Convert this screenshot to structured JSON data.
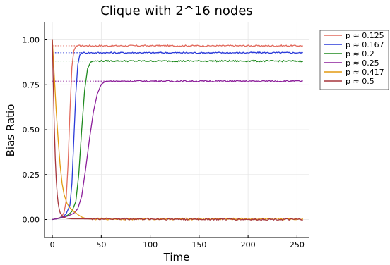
{
  "chart_data": {
    "type": "line",
    "title": "Clique with 2^16 nodes",
    "xlabel": "Time",
    "ylabel": "Bias Ratio",
    "xlim": [
      -8,
      262
    ],
    "ylim": [
      -0.1,
      1.1
    ],
    "xticks": [
      0,
      50,
      100,
      150,
      200,
      250
    ],
    "yticks": [
      0.0,
      0.25,
      0.5,
      0.75,
      1.0
    ],
    "xtick_labels": [
      "0",
      "50",
      "100",
      "150",
      "200",
      "250"
    ],
    "ytick_labels": [
      "0.00",
      "0.25",
      "0.50",
      "0.75",
      "1.00"
    ],
    "grid": true,
    "legend_position": "outside-top-right",
    "series": [
      {
        "name": "p ≈ 0.125",
        "color": "#e26a5d",
        "outcome": "rise",
        "plateau": 0.967,
        "points": [
          [
            0,
            0.0
          ],
          [
            4,
            0.004
          ],
          [
            8,
            0.012
          ],
          [
            10,
            0.02
          ],
          [
            12,
            0.04
          ],
          [
            14,
            0.1
          ],
          [
            16,
            0.3
          ],
          [
            18,
            0.6
          ],
          [
            20,
            0.85
          ],
          [
            22,
            0.94
          ],
          [
            24,
            0.963
          ],
          [
            26,
            0.967
          ],
          [
            256,
            0.967
          ]
        ]
      },
      {
        "name": "p ≈ 0.167",
        "color": "#2a3ad9",
        "outcome": "rise",
        "plateau": 0.928,
        "points": [
          [
            0,
            0.0
          ],
          [
            6,
            0.006
          ],
          [
            10,
            0.014
          ],
          [
            14,
            0.03
          ],
          [
            18,
            0.08
          ],
          [
            20,
            0.2
          ],
          [
            22,
            0.45
          ],
          [
            24,
            0.7
          ],
          [
            26,
            0.86
          ],
          [
            28,
            0.915
          ],
          [
            30,
            0.928
          ],
          [
            256,
            0.928
          ]
        ]
      },
      {
        "name": "p ≈ 0.2",
        "color": "#1f8a1f",
        "outcome": "rise",
        "plateau": 0.882,
        "points": [
          [
            0,
            0.0
          ],
          [
            10,
            0.01
          ],
          [
            16,
            0.025
          ],
          [
            20,
            0.045
          ],
          [
            24,
            0.1
          ],
          [
            27,
            0.25
          ],
          [
            30,
            0.5
          ],
          [
            33,
            0.72
          ],
          [
            36,
            0.84
          ],
          [
            39,
            0.875
          ],
          [
            42,
            0.882
          ],
          [
            256,
            0.882
          ]
        ]
      },
      {
        "name": "p ≈ 0.25",
        "color": "#8c1f9a",
        "outcome": "rise",
        "plateau": 0.77,
        "points": [
          [
            0,
            0.0
          ],
          [
            10,
            0.01
          ],
          [
            16,
            0.02
          ],
          [
            22,
            0.035
          ],
          [
            26,
            0.06
          ],
          [
            30,
            0.13
          ],
          [
            34,
            0.28
          ],
          [
            38,
            0.45
          ],
          [
            42,
            0.6
          ],
          [
            46,
            0.7
          ],
          [
            50,
            0.752
          ],
          [
            54,
            0.768
          ],
          [
            58,
            0.77
          ],
          [
            256,
            0.77
          ]
        ]
      },
      {
        "name": "p ≈ 0.417",
        "color": "#e39a10",
        "outcome": "decay",
        "plateau": 0.003,
        "points": [
          [
            0,
            1.0
          ],
          [
            2,
            0.8
          ],
          [
            4,
            0.6
          ],
          [
            6,
            0.44
          ],
          [
            8,
            0.3
          ],
          [
            10,
            0.2
          ],
          [
            12,
            0.14
          ],
          [
            15,
            0.09
          ],
          [
            18,
            0.065
          ],
          [
            22,
            0.045
          ],
          [
            26,
            0.028
          ],
          [
            30,
            0.014
          ],
          [
            34,
            0.006
          ],
          [
            38,
            0.003
          ],
          [
            256,
            0.003
          ]
        ]
      },
      {
        "name": "p ≈ 0.5",
        "color": "#a6353c",
        "outcome": "decay",
        "plateau": 0.0,
        "points": [
          [
            0,
            1.0
          ],
          [
            1,
            0.75
          ],
          [
            2,
            0.52
          ],
          [
            3,
            0.34
          ],
          [
            4,
            0.22
          ],
          [
            5,
            0.14
          ],
          [
            6,
            0.09
          ],
          [
            7,
            0.058
          ],
          [
            8,
            0.038
          ],
          [
            10,
            0.02
          ],
          [
            12,
            0.012
          ],
          [
            14,
            0.008
          ],
          [
            16,
            0.006
          ],
          [
            20,
            0.004
          ],
          [
            256,
            0.0
          ]
        ]
      }
    ]
  }
}
